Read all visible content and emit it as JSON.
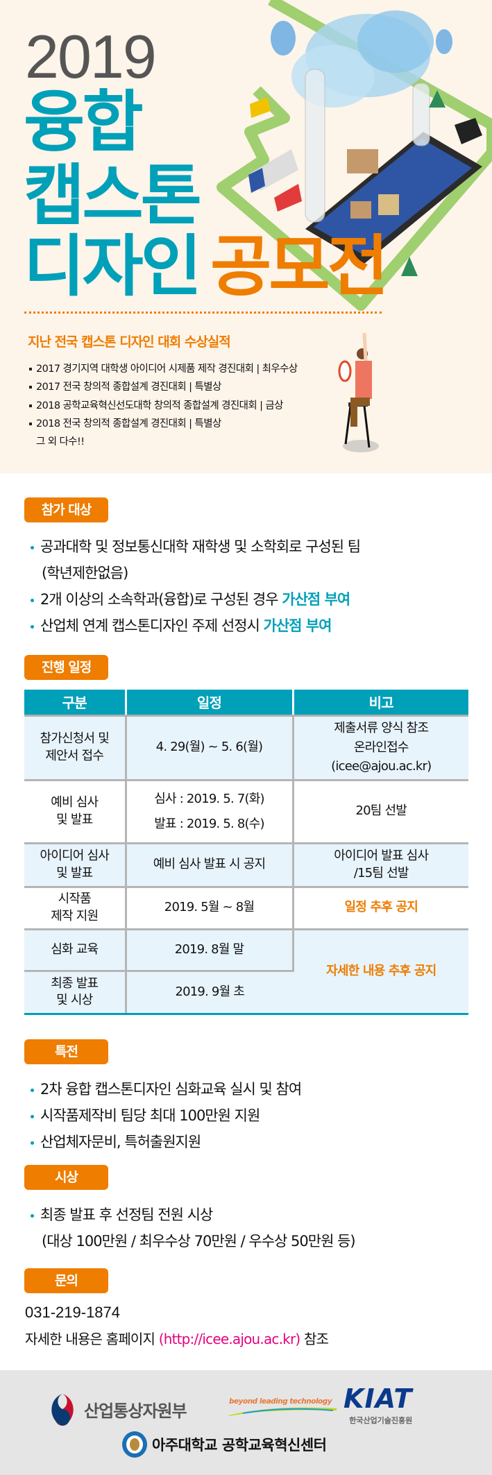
{
  "hero": {
    "year": "2019",
    "title_line1": "융합",
    "title_line2": "캡스톤",
    "title_line3a": "디자인",
    "title_line3b": "공모전"
  },
  "awards": {
    "title": "지난 전국 캡스톤 디자인 대회 수상실적",
    "items": [
      "2017 경기지역 대학생 아이디어 시제품 제작 경진대회  |  최우수상",
      "2017 전국 창의적 종합설계 경진대회  |  특별상",
      "2018 공학교육혁신선도대학 창의적 종합설계 경진대회  |  금상",
      "2018 전국 창의적 종합설계 경진대회  |  특별상"
    ],
    "more": "그 외 다수!!"
  },
  "eligibility": {
    "label": "참가 대상",
    "item1": "공과대학 및 정보통신대학 재학생 및 소학회로 구성된 팀",
    "item1_cont": "(학년제한없음)",
    "item2": "2개 이상의 소속학과(융합)로 구성된 경우 ",
    "item2_hl": "가산점 부여",
    "item3": "산업체 연계 캡스톤디자인 주제 선정시 ",
    "item3_hl": "가산점 부여"
  },
  "schedule": {
    "label": "진행 일정",
    "headers": [
      "구분",
      "일정",
      "비고"
    ],
    "rows": [
      {
        "stage": "참가신청서 및\n제안서 접수",
        "date": "4. 29(월) ~ 5. 6(월)",
        "note": "제출서류 양식 참조\n온라인접수\n(icee@ajou.ac.kr)"
      },
      {
        "stage": "예비 심사\n및 발표",
        "date": "심사 : 2019. 5. 7(화)\n발표 : 2019. 5. 8(수)",
        "note": "20팀 선발"
      },
      {
        "stage": "아이디어 심사\n및 발표",
        "date": "예비 심사 발표 시 공지",
        "note": "아이디어 발표 심사\n/15팀 선발"
      },
      {
        "stage": "시작품\n제작 지원",
        "date": "2019. 5월 ~ 8월",
        "note": "일정 추후 공지"
      },
      {
        "stage": "심화 교육",
        "date": "2019. 8월 말",
        "note": "자세한 내용 추후 공지"
      },
      {
        "stage": "최종 발표\n및 시상",
        "date": "2019. 9월 초"
      }
    ]
  },
  "benefits": {
    "label": "특전",
    "items": [
      "2차 융합 캡스톤디자인 심화교육 실시 및 참여",
      "시작품제작비 팀당 최대 100만원 지원",
      "산업체자문비, 특허출원지원"
    ]
  },
  "awards_prize": {
    "label": "시상",
    "item": "최종 발표 후 선정팀 전원 시상",
    "item_cont": "(대상 100만원 / 최우수상 70만원 / 우수상 50만원 등)"
  },
  "contact": {
    "label": "문의",
    "phone": "031-219-1874",
    "homepage_prefix": "자세한 내용은 홈페이지 ",
    "homepage_url": "(http://icee.ajou.ac.kr)",
    "homepage_suffix": " 참조"
  },
  "footer": {
    "motie": "산업통상자원부",
    "slogan": "beyond leading technology",
    "kiat": "KIAT",
    "kiat_sub": "한국산업기술진흥원",
    "ajou": "아주대학교 공학교육혁신센터"
  },
  "colors": {
    "teal": "#00a0b9",
    "orange": "#ee7d00",
    "magenta": "#e4007f",
    "beige": "#fdf4ea"
  }
}
